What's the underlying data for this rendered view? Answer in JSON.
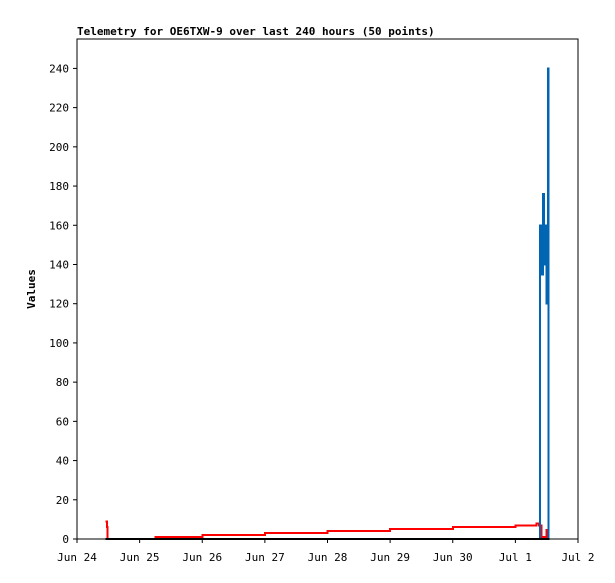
{
  "chart_data": {
    "type": "line",
    "title": "Telemetry for OE6TXW-9 over last 240 hours (50 points)",
    "xlabel": "",
    "ylabel": "Values",
    "x_ticks": [
      "Jun 24",
      "Jun 25",
      "Jun 26",
      "Jun 27",
      "Jun 28",
      "Jun 29",
      "Jun 30",
      "Jul 1",
      "Jul 2"
    ],
    "xlim": [
      "Jun 24 00:00",
      "Jul 2 00:00"
    ],
    "ylim": [
      0,
      255
    ],
    "y_ticks": [
      0,
      20,
      40,
      60,
      80,
      100,
      120,
      140,
      160,
      180,
      200,
      220,
      240
    ],
    "grid": false,
    "legend": "none",
    "series": [
      {
        "color": "#ff0000",
        "points": [
          {
            "x": "Jun 24 11:00",
            "y": 9
          },
          {
            "x": "Jun 24 11:30",
            "y": 6
          },
          {
            "x": "Jun 24 11:45",
            "y": 0
          },
          {
            "x": "Jun 25 06:00",
            "y": 1
          },
          {
            "x": "Jun 26 00:00",
            "y": 2
          },
          {
            "x": "Jun 27 00:00",
            "y": 3
          },
          {
            "x": "Jun 28 00:00",
            "y": 4
          },
          {
            "x": "Jun 29 00:00",
            "y": 5
          },
          {
            "x": "Jun 30 00:00",
            "y": 6
          },
          {
            "x": "Jul 1 00:00",
            "y": 7
          },
          {
            "x": "Jul 1 08:00",
            "y": 8
          },
          {
            "x": "Jul 1 09:00",
            "y": 7
          },
          {
            "x": "Jul 1 10:00",
            "y": 1
          },
          {
            "x": "Jul 1 12:00",
            "y": 5
          }
        ]
      },
      {
        "color": "#0066b3",
        "points": [
          {
            "x": "Jul 1 09:00",
            "y": 0
          },
          {
            "x": "Jul 1 09:30",
            "y": 160
          },
          {
            "x": "Jul 1 10:00",
            "y": 135
          },
          {
            "x": "Jul 1 10:30",
            "y": 176
          },
          {
            "x": "Jul 1 11:00",
            "y": 140
          },
          {
            "x": "Jul 1 11:30",
            "y": 160
          },
          {
            "x": "Jul 1 12:00",
            "y": 120
          },
          {
            "x": "Jul 1 12:30",
            "y": 240
          },
          {
            "x": "Jul 1 12:45",
            "y": 0
          }
        ]
      },
      {
        "color": "#000000",
        "points": [
          {
            "x": "Jun 24 11:00",
            "y": 0
          },
          {
            "x": "Jul 1 13:00",
            "y": 0
          }
        ]
      }
    ]
  }
}
